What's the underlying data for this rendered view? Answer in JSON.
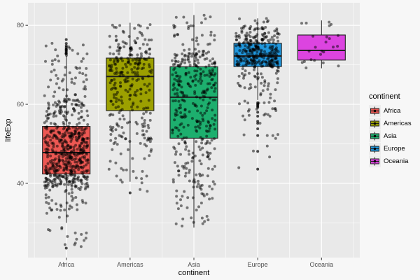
{
  "figure": {
    "bg": "#F7F7F7",
    "panel_bg": "#E9E9E9",
    "grid_color": "#FFFFFF",
    "tick_color": "#333333",
    "axis_text_color": "#4D4D4D",
    "box_outline": "#1F1F1F",
    "point_color": "#000000",
    "legend_key_bg": "#EDEDED"
  },
  "chart_data": {
    "type": "boxplot",
    "title": "",
    "xlabel": "continent",
    "ylabel": "lifeExp",
    "ylim": [
      21.2,
      85.7
    ],
    "y_ticks": [
      40,
      60,
      80
    ],
    "y_minor": [
      30,
      50,
      70
    ],
    "grid": true,
    "categories": [
      "Africa",
      "Americas",
      "Asia",
      "Europe",
      "Oceania"
    ],
    "legend": {
      "title": "continent",
      "position": "right",
      "entries": [
        "Africa",
        "Americas",
        "Asia",
        "Europe",
        "Oceania"
      ]
    },
    "series": [
      {
        "name": "Africa",
        "color": "#ED5853",
        "n_points": 624,
        "box": {
          "q1": 42.37,
          "median": 47.79,
          "q3": 54.41,
          "whisker_low": 30.0,
          "whisker_high": 72.3
        },
        "outliers": [
          23.6,
          72.8,
          73.0,
          73.4,
          73.6,
          73.9,
          74.0,
          74.4,
          74.8,
          75.4,
          76.4
        ],
        "quantile_p": [
          0,
          0.04,
          0.1,
          0.25,
          0.5,
          0.75,
          0.9,
          0.97,
          1
        ],
        "quantile_v": [
          23.6,
          33.0,
          38.5,
          42.4,
          47.8,
          54.4,
          61.0,
          69.5,
          76.4
        ]
      },
      {
        "name": "Americas",
        "color": "#9CA000",
        "n_points": 300,
        "box": {
          "q1": 58.41,
          "median": 67.05,
          "q3": 71.7,
          "whisker_low": 40.4,
          "whisker_high": 80.65
        },
        "outliers": [
          37.6
        ],
        "quantile_p": [
          0,
          0.04,
          0.1,
          0.25,
          0.5,
          0.75,
          0.9,
          0.97,
          1
        ],
        "quantile_v": [
          37.6,
          42.5,
          50.5,
          58.4,
          67.1,
          71.7,
          74.3,
          77.5,
          80.7
        ]
      },
      {
        "name": "Asia",
        "color": "#1DAF6E",
        "n_points": 396,
        "box": {
          "q1": 51.43,
          "median": 61.79,
          "q3": 69.51,
          "whisker_low": 28.8,
          "whisker_high": 82.6
        },
        "outliers": [],
        "quantile_p": [
          0,
          0.04,
          0.1,
          0.25,
          0.5,
          0.75,
          0.9,
          0.97,
          1
        ],
        "quantile_v": [
          28.8,
          36.0,
          42.0,
          51.4,
          61.8,
          69.5,
          73.0,
          78.0,
          82.6
        ]
      },
      {
        "name": "Europe",
        "color": "#2097DD",
        "n_points": 360,
        "box": {
          "q1": 69.57,
          "median": 72.24,
          "q3": 75.45,
          "whisker_low": 61.1,
          "whisker_high": 81.76
        },
        "outliers": [
          43.6,
          48.1,
          52.1,
          53.8,
          55.2,
          55.7,
          57.0,
          58.0,
          59.2,
          59.5,
          59.8,
          60.1,
          60.4
        ],
        "quantile_p": [
          0,
          0.04,
          0.1,
          0.25,
          0.5,
          0.75,
          0.9,
          0.97,
          1
        ],
        "quantile_v": [
          43.6,
          57.0,
          63.5,
          69.6,
          72.2,
          75.5,
          77.6,
          79.8,
          81.8
        ]
      },
      {
        "name": "Oceania",
        "color": "#DC44E0",
        "n_points": 24,
        "box": {
          "q1": 71.2,
          "median": 73.66,
          "q3": 77.55,
          "whisker_low": 69.12,
          "whisker_high": 81.24
        },
        "outliers": [],
        "quantile_p": [
          0,
          0.04,
          0.1,
          0.25,
          0.5,
          0.75,
          0.9,
          0.97,
          1
        ],
        "quantile_v": [
          69.1,
          69.5,
          70.2,
          71.2,
          73.7,
          77.6,
          80.0,
          81.0,
          81.2
        ]
      }
    ]
  }
}
